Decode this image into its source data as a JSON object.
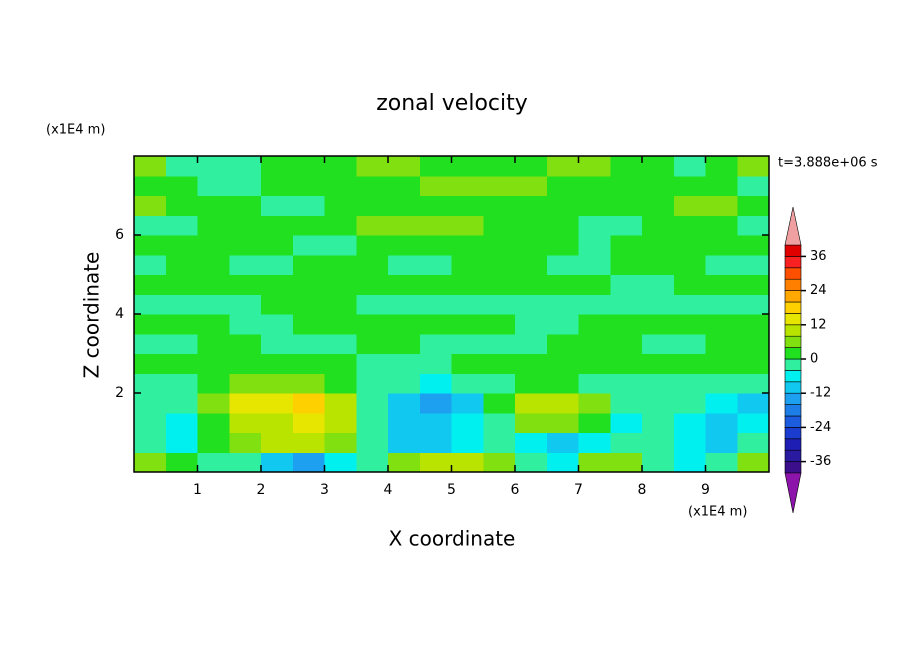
{
  "chart_data": {
    "type": "contour",
    "title": "zonal velocity",
    "annotation": "t=3.888e+06 s",
    "y_unit_label": "(x1E4 m)",
    "x_unit_label": "(x1E4 m)",
    "xlabel": "X coordinate",
    "ylabel": "Z coordinate",
    "xlim": [
      0,
      10
    ],
    "ylim": [
      0,
      8
    ],
    "xticks": [
      1,
      2,
      3,
      4,
      5,
      6,
      7,
      8,
      9
    ],
    "yticks": [
      2,
      4,
      6
    ],
    "x": [
      0.25,
      0.75,
      1.25,
      1.75,
      2.25,
      2.75,
      3.25,
      3.75,
      4.25,
      4.75,
      5.25,
      5.75,
      6.25,
      6.75,
      7.25,
      7.75,
      8.25,
      8.75,
      9.25,
      9.75
    ],
    "y": [
      0.25,
      0.75,
      1.25,
      1.75,
      2.25,
      2.75,
      3.25,
      3.75,
      4.25,
      4.75,
      5.25,
      5.75,
      6.25,
      6.75,
      7.25,
      7.75
    ],
    "z": [
      [
        6,
        2,
        -2,
        -2,
        -10,
        -14,
        -8,
        -2,
        6,
        8,
        8,
        6,
        -2,
        -6,
        4,
        6,
        -2,
        -6,
        -4,
        6
      ],
      [
        -2,
        -6,
        2,
        6,
        8,
        8,
        4,
        -2,
        -10,
        -10,
        -8,
        -2,
        -6,
        -10,
        -6,
        -2,
        -2,
        -8,
        -10,
        -2
      ],
      [
        -4,
        -6,
        2,
        8,
        10,
        12,
        8,
        -2,
        -10,
        -12,
        -8,
        -2,
        4,
        6,
        2,
        -6,
        -2,
        -8,
        -10,
        -8
      ],
      [
        -2,
        -4,
        4,
        12,
        14,
        16,
        10,
        -2,
        -12,
        -16,
        -10,
        2,
        8,
        10,
        6,
        -2,
        -2,
        -4,
        -8,
        -10
      ],
      [
        -2,
        -2,
        2,
        4,
        6,
        4,
        2,
        -2,
        -4,
        -6,
        -2,
        -2,
        2,
        2,
        -2,
        -2,
        -2,
        -2,
        -4,
        -2
      ],
      [
        2,
        2,
        2,
        2,
        2,
        2,
        2,
        -2,
        -2,
        -2,
        2,
        2,
        2,
        2,
        2,
        2,
        2,
        2,
        2,
        2
      ],
      [
        -2,
        -2,
        2,
        2,
        -2,
        -2,
        -2,
        2,
        2,
        -2,
        -2,
        -2,
        -2,
        2,
        2,
        2,
        -2,
        -2,
        2,
        2
      ],
      [
        2,
        2,
        2,
        -2,
        -2,
        2,
        2,
        2,
        2,
        2,
        2,
        2,
        -2,
        -2,
        2,
        2,
        2,
        2,
        2,
        2
      ],
      [
        -2,
        -2,
        -2,
        -2,
        2,
        2,
        2,
        -2,
        -2,
        -2,
        -2,
        -2,
        -2,
        -2,
        -2,
        -2,
        -2,
        -2,
        -2,
        -2
      ],
      [
        2,
        2,
        2,
        2,
        2,
        2,
        2,
        2,
        2,
        2,
        2,
        2,
        2,
        2,
        2,
        -2,
        -2,
        2,
        2,
        2
      ],
      [
        -2,
        2,
        2,
        -2,
        -2,
        2,
        2,
        2,
        -2,
        -2,
        2,
        2,
        2,
        -2,
        -2,
        2,
        2,
        2,
        -2,
        -2
      ],
      [
        2,
        2,
        2,
        2,
        2,
        -2,
        -2,
        2,
        2,
        2,
        2,
        2,
        2,
        2,
        -2,
        2,
        2,
        2,
        2,
        2
      ],
      [
        -2,
        -2,
        2,
        2,
        2,
        2,
        2,
        6,
        6,
        6,
        6,
        2,
        2,
        2,
        -2,
        -2,
        2,
        2,
        2,
        -2
      ],
      [
        6,
        2,
        2,
        2,
        -2,
        -2,
        2,
        2,
        2,
        2,
        2,
        2,
        2,
        2,
        2,
        2,
        2,
        6,
        6,
        2
      ],
      [
        2,
        2,
        -2,
        -2,
        2,
        2,
        2,
        2,
        2,
        6,
        6,
        6,
        6,
        2,
        2,
        2,
        2,
        2,
        2,
        -2
      ],
      [
        6,
        -2,
        -4,
        -2,
        2,
        2,
        2,
        6,
        6,
        2,
        2,
        2,
        2,
        6,
        6,
        2,
        2,
        -2,
        2,
        6
      ]
    ],
    "levels": [
      -40,
      -36,
      -32,
      -28,
      -24,
      -20,
      -16,
      -12,
      -8,
      -4,
      0,
      4,
      8,
      12,
      16,
      20,
      24,
      28,
      32,
      36,
      40
    ],
    "colors": [
      "#8c14aa",
      "#3b0f8c",
      "#2a1aa0",
      "#1e1eb4",
      "#1a3ccf",
      "#1c5de0",
      "#1e7ee8",
      "#1ea0f0",
      "#10c8f0",
      "#00f0f0",
      "#30f0a0",
      "#20e020",
      "#80e010",
      "#b8e400",
      "#e6e600",
      "#ffd000",
      "#ffa800",
      "#ff8000",
      "#ff5000",
      "#f82020",
      "#e00000",
      "#f0a0a0"
    ],
    "colorbar_ticks": [
      -36,
      -24,
      -12,
      0,
      12,
      24,
      36
    ]
  }
}
